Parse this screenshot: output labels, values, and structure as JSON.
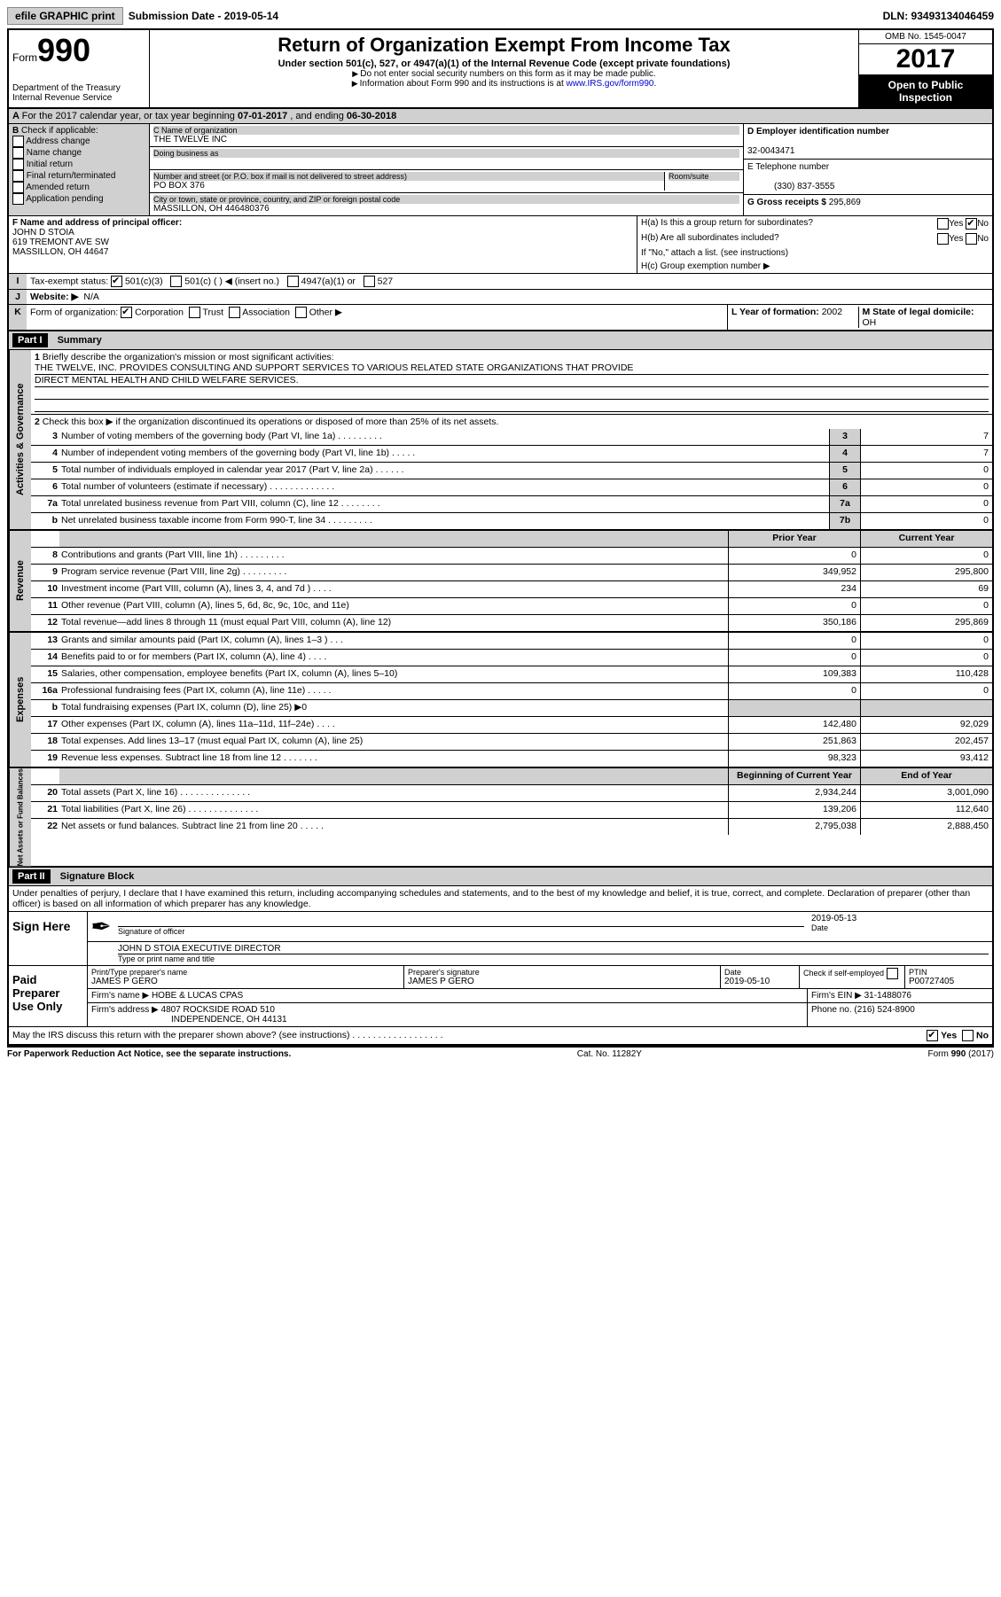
{
  "topbar": {
    "efile": "efile GRAPHIC print",
    "sub_label": "Submission Date - 2019-05-14",
    "dln": "DLN: 93493134046459"
  },
  "header": {
    "form_label": "Form",
    "form_num": "990",
    "dept": "Department of the Treasury",
    "irs": "Internal Revenue Service",
    "title": "Return of Organization Exempt From Income Tax",
    "subtitle": "Under section 501(c), 527, or 4947(a)(1) of the Internal Revenue Code (except private foundations)",
    "note1": "Do not enter social security numbers on this form as it may be made public.",
    "note2_pre": "Information about Form 990 and its instructions is at ",
    "note2_link": "www.IRS.gov/form990",
    "omb": "OMB No. 1545-0047",
    "year": "2017",
    "open1": "Open to Public",
    "open2": "Inspection"
  },
  "A": {
    "text_pre": "For the 2017 calendar year, or tax year beginning ",
    "begin": "07-01-2017",
    "mid": " , and ending ",
    "end": "06-30-2018"
  },
  "B": {
    "label": "Check if applicable:",
    "opts": [
      "Address change",
      "Name change",
      "Initial return",
      "Final return/terminated",
      "Amended return",
      "Application pending"
    ]
  },
  "C": {
    "name_lbl": "C Name of organization",
    "name": "THE TWELVE INC",
    "dba_lbl": "Doing business as",
    "addr_lbl": "Number and street (or P.O. box if mail is not delivered to street address)",
    "room_lbl": "Room/suite",
    "addr": "PO BOX 376",
    "city_lbl": "City or town, state or province, country, and ZIP or foreign postal code",
    "city": "MASSILLON, OH  446480376"
  },
  "D": {
    "lbl": "D Employer identification number",
    "val": "32-0043471"
  },
  "E": {
    "lbl": "E Telephone number",
    "val": "(330) 837-3555"
  },
  "G": {
    "lbl": "G Gross receipts $",
    "val": "295,869"
  },
  "F": {
    "lbl": "F Name and address of principal officer:",
    "name": "JOHN D STOIA",
    "addr1": "619 TREMONT AVE SW",
    "addr2": "MASSILLON, OH  44647"
  },
  "H": {
    "a": "H(a)  Is this a group return for subordinates?",
    "b": "H(b)  Are all subordinates included?",
    "b_note": "If \"No,\" attach a list. (see instructions)",
    "c": "H(c)  Group exemption number ▶",
    "yes": "Yes",
    "no": "No"
  },
  "I": {
    "lbl": "Tax-exempt status:",
    "o1": "501(c)(3)",
    "o2": "501(c) (   ) ◀ (insert no.)",
    "o3": "4947(a)(1) or",
    "o4": "527"
  },
  "J": {
    "lbl": "Website: ▶",
    "val": "N/A"
  },
  "K": {
    "lbl": "Form of organization:",
    "o1": "Corporation",
    "o2": "Trust",
    "o3": "Association",
    "o4": "Other ▶"
  },
  "L": {
    "lbl": "L Year of formation:",
    "val": "2002"
  },
  "M": {
    "lbl": "M State of legal domicile:",
    "val": "OH"
  },
  "parts": {
    "p1": "Part I",
    "p1t": "Summary",
    "p2": "Part II",
    "p2t": "Signature Block"
  },
  "s1": {
    "l1": "Briefly describe the organization's mission or most significant activities:",
    "l1a": "THE TWELVE, INC. PROVIDES CONSULTING AND SUPPORT SERVICES TO VARIOUS RELATED STATE ORGANIZATIONS THAT PROVIDE",
    "l1b": "DIRECT MENTAL HEALTH AND CHILD WELFARE SERVICES.",
    "l2": "Check this box ▶         if the organization discontinued its operations or disposed of more than 25% of its net assets.",
    "rows": [
      {
        "n": "3",
        "d": "Number of voting members of the governing body (Part VI, line 1a)  .    .    .    .    .    .    .    .    .",
        "b": "3",
        "v": "7"
      },
      {
        "n": "4",
        "d": "Number of independent voting members of the governing body (Part VI, line 1b)   .    .    .    .    .",
        "b": "4",
        "v": "7"
      },
      {
        "n": "5",
        "d": "Total number of individuals employed in calendar year 2017 (Part V, line 2a)   .    .    .    .    .    .",
        "b": "5",
        "v": "0"
      },
      {
        "n": "6",
        "d": "Total number of volunteers (estimate if necessary)   .    .    .    .    .    .    .    .    .    .    .    .    .",
        "b": "6",
        "v": "0"
      },
      {
        "n": "7a",
        "d": "Total unrelated business revenue from Part VIII, column (C), line 12   .    .    .    .    .    .    .    .",
        "b": "7a",
        "v": "0"
      },
      {
        "n": "b",
        "d": "Net unrelated business taxable income from Form 990-T, line 34   .    .    .    .    .    .    .    .    .",
        "b": "7b",
        "v": "0"
      }
    ]
  },
  "rev_hdr": {
    "py": "Prior Year",
    "cy": "Current Year"
  },
  "rev": [
    {
      "n": "8",
      "d": "Contributions and grants (Part VIII, line 1h)   .    .    .    .    .    .    .    .    .",
      "p": "0",
      "c": "0"
    },
    {
      "n": "9",
      "d": "Program service revenue (Part VIII, line 2g)   .    .    .    .    .    .    .    .    .",
      "p": "349,952",
      "c": "295,800"
    },
    {
      "n": "10",
      "d": "Investment income (Part VIII, column (A), lines 3, 4, and 7d )   .    .    .    .",
      "p": "234",
      "c": "69"
    },
    {
      "n": "11",
      "d": "Other revenue (Part VIII, column (A), lines 5, 6d, 8c, 9c, 10c, and 11e)",
      "p": "0",
      "c": "0"
    },
    {
      "n": "12",
      "d": "Total revenue—add lines 8 through 11 (must equal Part VIII, column (A), line 12)",
      "p": "350,186",
      "c": "295,869"
    }
  ],
  "exp": [
    {
      "n": "13",
      "d": "Grants and similar amounts paid (Part IX, column (A), lines 1–3 )   .    .    .",
      "p": "0",
      "c": "0"
    },
    {
      "n": "14",
      "d": "Benefits paid to or for members (Part IX, column (A), line 4)   .    .    .    .",
      "p": "0",
      "c": "0"
    },
    {
      "n": "15",
      "d": "Salaries, other compensation, employee benefits (Part IX, column (A), lines 5–10)",
      "p": "109,383",
      "c": "110,428"
    },
    {
      "n": "16a",
      "d": "Professional fundraising fees (Part IX, column (A), line 11e)   .    .    .    .    .",
      "p": "0",
      "c": "0"
    },
    {
      "n": "b",
      "d": "Total fundraising expenses (Part IX, column (D), line 25) ▶0",
      "shade": true
    },
    {
      "n": "17",
      "d": "Other expenses (Part IX, column (A), lines 11a–11d, 11f–24e)   .    .    .    .",
      "p": "142,480",
      "c": "92,029"
    },
    {
      "n": "18",
      "d": "Total expenses. Add lines 13–17 (must equal Part IX, column (A), line 25)",
      "p": "251,863",
      "c": "202,457"
    },
    {
      "n": "19",
      "d": "Revenue less expenses. Subtract line 18 from line 12  .    .    .    .    .    .    .",
      "p": "98,323",
      "c": "93,412"
    }
  ],
  "na_hdr": {
    "b": "Beginning of Current Year",
    "e": "End of Year"
  },
  "na": [
    {
      "n": "20",
      "d": "Total assets (Part X, line 16)   .    .    .    .    .    .    .    .    .    .    .    .    .    .",
      "p": "2,934,244",
      "c": "3,001,090"
    },
    {
      "n": "21",
      "d": "Total liabilities (Part X, line 26)   .    .    .    .    .    .    .    .    .    .    .    .    .    .",
      "p": "139,206",
      "c": "112,640"
    },
    {
      "n": "22",
      "d": "Net assets or fund balances. Subtract line 21 from line 20   .    .    .    .    .",
      "p": "2,795,038",
      "c": "2,888,450"
    }
  ],
  "vlabels": {
    "ag": "Activities & Governance",
    "rev": "Revenue",
    "exp": "Expenses",
    "na": "Net Assets or Fund Balances"
  },
  "sig": {
    "perjury": "Under penalties of perjury, I declare that I have examined this return, including accompanying schedules and statements, and to the best of my knowledge and belief, it is true, correct, and complete. Declaration of preparer (other than officer) is based on all information of which preparer has any knowledge.",
    "sign_here": "Sign Here",
    "sig_officer": "Signature of officer",
    "date_lbl": "Date",
    "date": "2019-05-13",
    "name_title": "JOHN D STOIA  EXECUTIVE DIRECTOR",
    "type_name": "Type or print name and title",
    "paid": "Paid Preparer Use Only",
    "prep_name_lbl": "Print/Type preparer's name",
    "prep_name": "JAMES P GERO",
    "prep_sig_lbl": "Preparer's signature",
    "prep_sig": "JAMES P GERO",
    "prep_date": "2019-05-10",
    "check_if": "Check         if self-employed",
    "ptin_lbl": "PTIN",
    "ptin": "P00727405",
    "firm_name_lbl": "Firm's name      ▶",
    "firm_name": "HOBE & LUCAS CPAS",
    "firm_ein_lbl": "Firm's EIN ▶",
    "firm_ein": "31-1488076",
    "firm_addr_lbl": "Firm's address ▶",
    "firm_addr1": "4807 ROCKSIDE ROAD 510",
    "firm_addr2": "INDEPENDENCE, OH  44131",
    "phone_lbl": "Phone no.",
    "phone": "(216) 524-8900",
    "discuss": "May the IRS discuss this return with the preparer shown above? (see instructions)   .    .    .    .    .    .    .    .    .    .    .    .    .    .    .    .    .    .",
    "yes": "Yes",
    "no": "No"
  },
  "foot": {
    "l": "For Paperwork Reduction Act Notice, see the separate instructions.",
    "m": "Cat. No. 11282Y",
    "r": "Form 990 (2017)"
  }
}
